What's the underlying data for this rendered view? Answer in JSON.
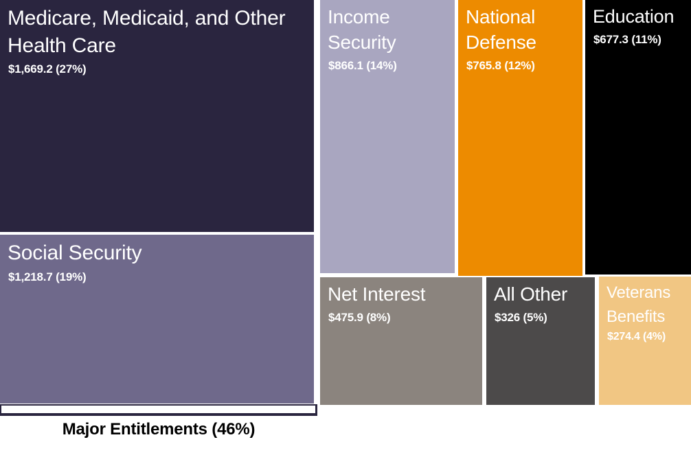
{
  "chart_data": {
    "type": "treemap",
    "items": [
      {
        "name": "Medicare, Medicaid, and Other Health Care",
        "value": 1669.2,
        "percent": 27,
        "display": "$1,669.2 (27%)",
        "color": "#2a253f"
      },
      {
        "name": "Social Security",
        "value": 1218.7,
        "percent": 19,
        "display": "$1,218.7 (19%)",
        "color": "#6f698b"
      },
      {
        "name": "Income Security",
        "value": 866.1,
        "percent": 14,
        "display": "$866.1 (14%)",
        "color": "#a9a6c0"
      },
      {
        "name": "National Defense",
        "value": 765.8,
        "percent": 12,
        "display": "$765.8 (12%)",
        "color": "#ed8b00"
      },
      {
        "name": "Education",
        "value": 677.3,
        "percent": 11,
        "display": "$677.3 (11%)",
        "color": "#000000"
      },
      {
        "name": "Net Interest",
        "value": 475.9,
        "percent": 8,
        "display": "$475.9 (8%)",
        "color": "#8b847e"
      },
      {
        "name": "All Other",
        "value": 326,
        "percent": 5,
        "display": "$326 (5%)",
        "color": "#4c4a4a"
      },
      {
        "name": "Veterans Benefits",
        "value": 274.4,
        "percent": 4,
        "display": "$274.4 (4%)",
        "color": "#f1c683"
      }
    ],
    "group_annotation": {
      "label": "Major Entitlements (46%)",
      "percent": 46,
      "members": [
        "Medicare, Medicaid, and Other Health Care",
        "Social Security"
      ]
    },
    "layout_hint": "treemap, white gutters between cells, bracket under left column grouping entitlements"
  }
}
